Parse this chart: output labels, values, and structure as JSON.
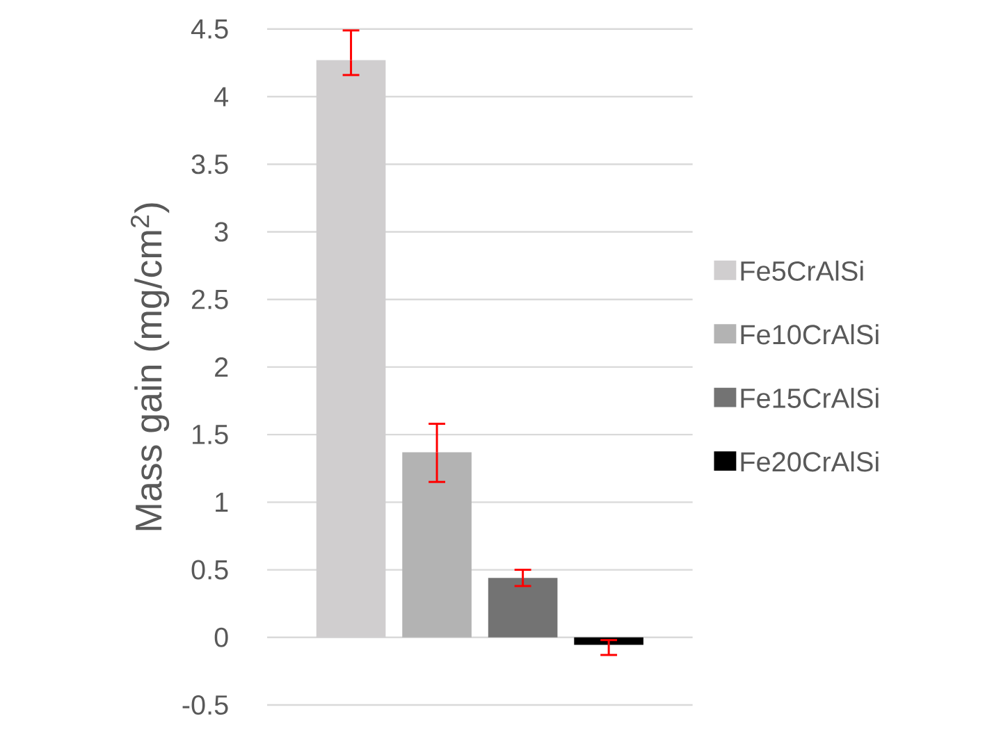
{
  "chart_data": {
    "type": "bar",
    "ylabel": "Mass gain (mg/cm$^{2}$)",
    "categories": [
      null
    ],
    "series": [
      {
        "name": "Fe5CrAlSi",
        "color": "#d0cecf",
        "values": [
          4.27
        ],
        "errors": [
          [
            4.16,
            4.49
          ]
        ]
      },
      {
        "name": "Fe10CrAlSi",
        "color": "#b3b3b3",
        "values": [
          1.37
        ],
        "errors": [
          [
            1.15,
            1.58
          ]
        ]
      },
      {
        "name": "Fe15CrAlSi",
        "color": "#737373",
        "values": [
          0.44
        ],
        "errors": [
          [
            0.38,
            0.5
          ]
        ]
      },
      {
        "name": "Fe20CrAlSi",
        "color": "#000000",
        "values": [
          -0.055
        ],
        "errors": [
          [
            -0.13,
            -0.02
          ]
        ]
      }
    ],
    "ylim": [
      -0.5,
      4.5
    ],
    "yticks": [
      -0.5,
      0,
      0.5,
      1,
      1.5,
      2,
      2.5,
      3,
      3.5,
      4,
      4.5
    ],
    "grid": "y",
    "legend": "right"
  }
}
